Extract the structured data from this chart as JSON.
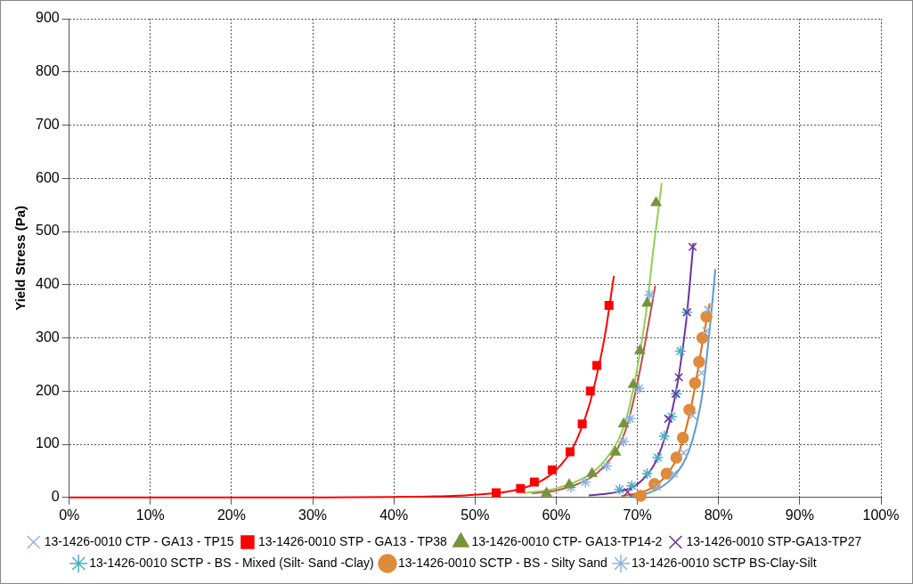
{
  "chart_data": {
    "type": "scatter",
    "ylabel": "Yield Stress (Pa)",
    "xlim": [
      0,
      100
    ],
    "ylim": [
      0,
      900
    ],
    "xticks": [
      {
        "value": 0,
        "label": "0%"
      },
      {
        "value": 10,
        "label": "10%"
      },
      {
        "value": 20,
        "label": "20%"
      },
      {
        "value": 30,
        "label": "30%"
      },
      {
        "value": 40,
        "label": "40%"
      },
      {
        "value": 50,
        "label": "50%"
      },
      {
        "value": 60,
        "label": "60%"
      },
      {
        "value": 70,
        "label": "70%"
      },
      {
        "value": 80,
        "label": "80%"
      },
      {
        "value": 90,
        "label": "90%"
      },
      {
        "value": 100,
        "label": "100%"
      }
    ],
    "yticks": [
      0,
      100,
      200,
      300,
      400,
      500,
      600,
      700,
      800,
      900
    ],
    "grid": true,
    "legend": "bottom",
    "series": [
      {
        "name": "13-1426-0010 CTP - GA13 - TP15",
        "color": "#95b3d7",
        "marker": "x",
        "x": [
          72.4,
          74.5,
          75.7,
          76.8,
          77.9,
          78.5,
          78.7
        ],
        "values": [
          20,
          45,
          84,
          154,
          234,
          313,
          353
        ]
      },
      {
        "name": "13-1426-0010 STP - GA13 - TP38",
        "color": "#ff0000",
        "marker": "square",
        "x": [
          52.6,
          55.6,
          57.3,
          59.5,
          61.7,
          63.2,
          64.2,
          65.0,
          66.5
        ],
        "values": [
          9,
          17,
          29,
          52,
          86,
          138,
          200,
          248,
          361
        ]
      },
      {
        "name": "13-1426-0010 CTP- GA13-TP14-2",
        "color": "#77933c",
        "marker": "triangle",
        "x": [
          58.8,
          61.6,
          64.4,
          67.3,
          68.3,
          69.5,
          70.3,
          71.2,
          72.3
        ],
        "values": [
          8,
          24,
          45,
          85,
          138,
          212,
          276,
          365,
          554
        ]
      },
      {
        "name": "13-1426-0010 STP-GA13-TP27",
        "color": "#7030a0",
        "marker": "x",
        "x": [
          68.8,
          73.8,
          74.7,
          75.1,
          76.1,
          76.8
        ],
        "values": [
          10,
          148,
          195,
          226,
          348,
          471
        ]
      },
      {
        "name": "13-1426-0010 SCTP - BS - Mixed (Silt- Sand -Clay)",
        "color": "#4bacc6",
        "marker": "cross",
        "x": [
          67.8,
          69.3,
          71.2,
          72.5,
          73.3,
          74.2,
          74.8,
          75.3,
          76.1
        ],
        "values": [
          15,
          22,
          45,
          75,
          115,
          152,
          195,
          275,
          348
        ]
      },
      {
        "name": "13-1426-0010 SCTP - BS - Silty Sand",
        "color": "#e08a3c",
        "marker": "circle",
        "x": [
          70.4,
          72.1,
          73.6,
          74.8,
          75.6,
          76.4,
          77.1,
          77.6,
          78.0,
          78.5
        ],
        "values": [
          3,
          25,
          45,
          75,
          112,
          165,
          215,
          255,
          300,
          340
        ]
      },
      {
        "name": "13-1426-0010 SCTP BS-Clay-Silt",
        "color": "#8db4e2",
        "marker": "cross",
        "x": [
          61.8,
          63.6,
          66.2,
          68.3,
          69.1,
          70.2,
          71.5
        ],
        "values": [
          19,
          29,
          59,
          105,
          148,
          205,
          381
        ]
      },
      {
        "type": "line",
        "color": "#ff0000",
        "marker": "none",
        "x": [
          0,
          30,
          40,
          45,
          50,
          55,
          58,
          60,
          62,
          64,
          65,
          66,
          67.1
        ],
        "values": [
          0,
          0,
          1,
          2,
          5,
          14,
          30,
          52,
          92,
          170,
          230,
          305,
          416
        ]
      },
      {
        "type": "line",
        "color": "#92d050",
        "marker": "none",
        "x": [
          56,
          60,
          64,
          66,
          68,
          69,
          70,
          71,
          72,
          73
        ],
        "values": [
          8,
          17,
          42,
          70,
          120,
          170,
          245,
          340,
          470,
          591
        ]
      },
      {
        "type": "line",
        "color": "#c0504d",
        "marker": "none",
        "x": [
          57,
          60,
          64,
          66,
          68,
          69,
          70,
          71,
          72.2
        ],
        "values": [
          8,
          13,
          35,
          60,
          105,
          150,
          215,
          295,
          398
        ]
      },
      {
        "type": "line",
        "color": "#7030a0",
        "marker": "none",
        "x": [
          64,
          65,
          68,
          70,
          72,
          73,
          74,
          75,
          76,
          76.9
        ],
        "values": [
          4,
          5,
          12,
          25,
          60,
          95,
          145,
          220,
          330,
          478
        ]
      },
      {
        "type": "line",
        "color": "#e46c0a",
        "marker": "none",
        "x": [
          68,
          70,
          72,
          74,
          75,
          76,
          77,
          78,
          78.9
        ],
        "values": [
          3,
          8,
          20,
          50,
          80,
          130,
          200,
          290,
          365
        ]
      },
      {
        "type": "line",
        "color": "#5b9bd5",
        "marker": "none",
        "x": [
          69,
          70,
          72,
          74,
          76,
          77,
          78,
          79,
          79.6
        ],
        "values": [
          3,
          4,
          12,
          32,
          75,
          120,
          195,
          330,
          429
        ]
      }
    ]
  }
}
